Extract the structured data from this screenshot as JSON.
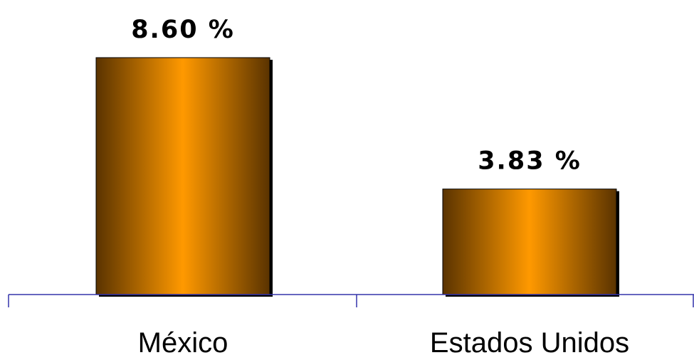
{
  "chart_data": {
    "type": "bar",
    "categories": [
      "México",
      "Estados Unidos"
    ],
    "values": [
      8.6,
      3.83
    ],
    "value_labels": [
      "8.60 %",
      "3.83 %"
    ],
    "title": "",
    "xlabel": "",
    "ylabel": "",
    "ylim": [
      0,
      10
    ],
    "grid": false,
    "legend": "none",
    "colors": {
      "bar_center": "#FF9900",
      "bar_edge": "#5A3300",
      "bar_shadow": "#000000",
      "axis": "#3333AA"
    }
  }
}
